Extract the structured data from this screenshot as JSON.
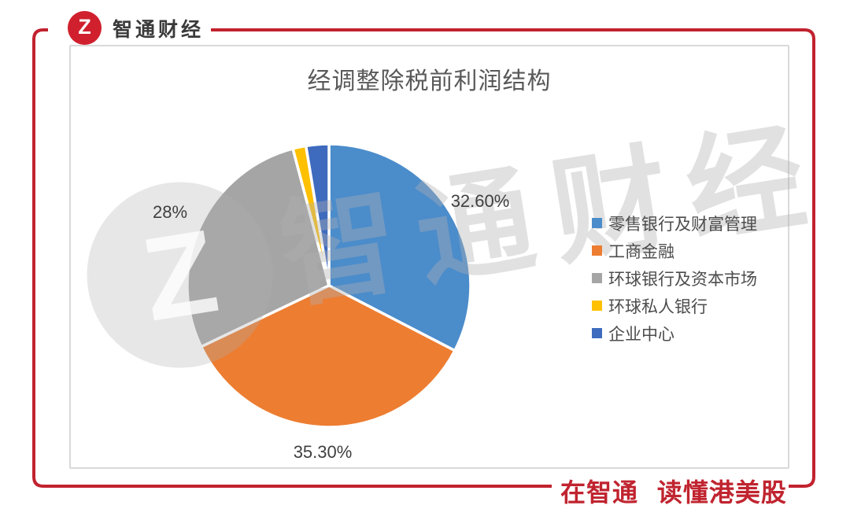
{
  "brand": {
    "logo_letter": "Z",
    "name": "智通财经"
  },
  "chart": {
    "title": "经调整除税前利润结构"
  },
  "chart_data": {
    "type": "pie",
    "title": "经调整除税前利润结构",
    "legend_position": "right",
    "start_angle_deg": 0,
    "direction": "clockwise",
    "slices": [
      {
        "name": "零售银行及财富管理",
        "value": 32.6,
        "label": "32.60%",
        "color": "#4B8CCB"
      },
      {
        "name": "工商金融",
        "value": 35.3,
        "label": "35.30%",
        "color": "#ED7D31"
      },
      {
        "name": "环球银行及资本市场",
        "value": 28.0,
        "label": "28%",
        "color": "#A5A5A5"
      },
      {
        "name": "环球私人银行",
        "value": 1.5,
        "label": "",
        "color": "#FFC000"
      },
      {
        "name": "企业中心",
        "value": 2.6,
        "label": "",
        "color": "#3E6BBE"
      }
    ]
  },
  "watermark": {
    "logo_letter": "Z",
    "text": "智通财经"
  },
  "footer": {
    "slogan": "在智通 读懂港美股"
  },
  "colors": {
    "frame_red": "#C2222F",
    "logo_red": "#D0202E",
    "slogan_red": "#C0242F",
    "panel_border_gray": "#D9D9D9",
    "title_gray": "#595959"
  }
}
